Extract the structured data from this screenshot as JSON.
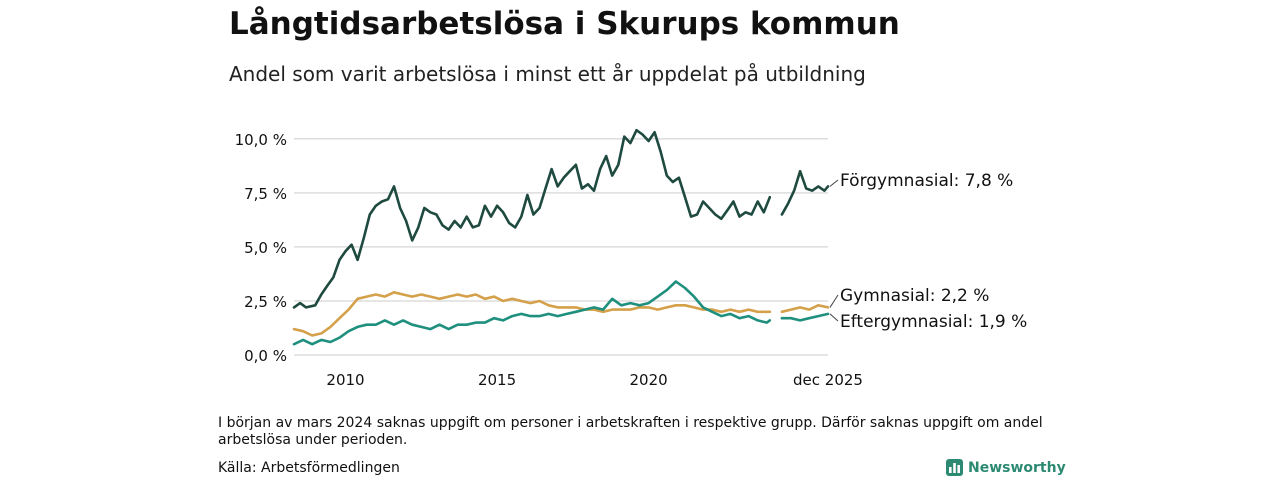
{
  "header": {
    "title": "Långtidsarbetslösa i Skurups kommun",
    "subtitle": "Andel som varit arbetslösa i minst ett år uppdelat på utbildning"
  },
  "footer": {
    "note": "I början av mars 2024 saknas uppgift om personer i arbetskraften i respektive grupp. Därför saknas uppgift om andel arbetslösa under perioden.",
    "source": "Källa: Arbetsförmedlingen",
    "brand": "Newsworthy"
  },
  "colors": {
    "forgymnasial": "#1f4a40",
    "gymnasial": "#d4a04a",
    "eftergymnasial": "#1f8f7e",
    "grid": "#dddddd",
    "brand": "#2c8a73"
  },
  "chart_data": {
    "type": "line",
    "title": "Långtidsarbetslösa i Skurups kommun",
    "subtitle": "Andel som varit arbetslösa i minst ett år uppdelat på utbildning",
    "xlabel": "",
    "ylabel": "",
    "x_range": [
      2008.3,
      2025.92
    ],
    "ylim": [
      0,
      10.5
    ],
    "y_ticks": [
      0,
      2.5,
      5,
      7.5,
      10
    ],
    "y_tick_labels": [
      "0,0 %",
      "2,5 %",
      "5,0 %",
      "7,5 %",
      "10,0 %"
    ],
    "x_ticks": [
      2010,
      2015,
      2020,
      2025.92
    ],
    "x_tick_labels": [
      "2010",
      "2015",
      "2020",
      "dec 2025"
    ],
    "grid": true,
    "gap": [
      2024.0,
      2024.4
    ],
    "series": [
      {
        "name": "Förgymnasial",
        "label": "Förgymnasial: 7,8 %",
        "color": "#1f4a40",
        "x": [
          2008.3,
          2008.5,
          2008.7,
          2009.0,
          2009.2,
          2009.4,
          2009.6,
          2009.8,
          2010.0,
          2010.2,
          2010.4,
          2010.6,
          2010.8,
          2011.0,
          2011.2,
          2011.4,
          2011.6,
          2011.8,
          2012.0,
          2012.2,
          2012.4,
          2012.6,
          2012.8,
          2013.0,
          2013.2,
          2013.4,
          2013.6,
          2013.8,
          2014.0,
          2014.2,
          2014.4,
          2014.6,
          2014.8,
          2015.0,
          2015.2,
          2015.4,
          2015.6,
          2015.8,
          2016.0,
          2016.2,
          2016.4,
          2016.6,
          2016.8,
          2017.0,
          2017.2,
          2017.4,
          2017.6,
          2017.8,
          2018.0,
          2018.2,
          2018.4,
          2018.6,
          2018.8,
          2019.0,
          2019.2,
          2019.4,
          2019.6,
          2019.8,
          2020.0,
          2020.2,
          2020.4,
          2020.6,
          2020.8,
          2021.0,
          2021.2,
          2021.4,
          2021.6,
          2021.8,
          2022.0,
          2022.2,
          2022.4,
          2022.6,
          2022.8,
          2023.0,
          2023.2,
          2023.4,
          2023.6,
          2023.8,
          2024.0,
          2024.4,
          2024.6,
          2024.8,
          2025.0,
          2025.2,
          2025.4,
          2025.6,
          2025.8,
          2025.92
        ],
        "values": [
          2.2,
          2.4,
          2.2,
          2.3,
          2.8,
          3.2,
          3.6,
          4.4,
          4.8,
          5.1,
          4.4,
          5.4,
          6.5,
          6.9,
          7.1,
          7.2,
          7.8,
          6.8,
          6.2,
          5.3,
          5.9,
          6.8,
          6.6,
          6.5,
          6.0,
          5.8,
          6.2,
          5.9,
          6.4,
          5.9,
          6.0,
          6.9,
          6.4,
          6.9,
          6.6,
          6.1,
          5.9,
          6.4,
          7.4,
          6.5,
          6.8,
          7.7,
          8.6,
          7.8,
          8.2,
          8.5,
          8.8,
          7.7,
          7.9,
          7.6,
          8.6,
          9.2,
          8.3,
          8.8,
          10.1,
          9.8,
          10.4,
          10.2,
          9.9,
          10.3,
          9.4,
          8.3,
          8.0,
          8.2,
          7.3,
          6.4,
          6.5,
          7.1,
          6.8,
          6.5,
          6.3,
          6.7,
          7.1,
          6.4,
          6.6,
          6.5,
          7.1,
          6.6,
          7.3,
          6.5,
          7.0,
          7.6,
          8.5,
          7.7,
          7.6,
          7.8,
          7.6,
          7.8
        ]
      },
      {
        "name": "Gymnasial",
        "label": "Gymnasial: 2,2 %",
        "color": "#d4a04a",
        "x": [
          2008.3,
          2008.6,
          2008.9,
          2009.2,
          2009.5,
          2009.8,
          2010.1,
          2010.4,
          2010.7,
          2011.0,
          2011.3,
          2011.6,
          2011.9,
          2012.2,
          2012.5,
          2012.8,
          2013.1,
          2013.4,
          2013.7,
          2014.0,
          2014.3,
          2014.6,
          2014.9,
          2015.2,
          2015.5,
          2015.8,
          2016.1,
          2016.4,
          2016.7,
          2017.0,
          2017.3,
          2017.6,
          2017.9,
          2018.2,
          2018.5,
          2018.8,
          2019.1,
          2019.4,
          2019.7,
          2020.0,
          2020.3,
          2020.6,
          2020.9,
          2021.2,
          2021.5,
          2021.8,
          2022.1,
          2022.4,
          2022.7,
          2023.0,
          2023.3,
          2023.6,
          2023.9,
          2024.0,
          2024.4,
          2024.7,
          2025.0,
          2025.3,
          2025.6,
          2025.92
        ],
        "values": [
          1.2,
          1.1,
          0.9,
          1.0,
          1.3,
          1.7,
          2.1,
          2.6,
          2.7,
          2.8,
          2.7,
          2.9,
          2.8,
          2.7,
          2.8,
          2.7,
          2.6,
          2.7,
          2.8,
          2.7,
          2.8,
          2.6,
          2.7,
          2.5,
          2.6,
          2.5,
          2.4,
          2.5,
          2.3,
          2.2,
          2.2,
          2.2,
          2.1,
          2.1,
          2.0,
          2.1,
          2.1,
          2.1,
          2.2,
          2.2,
          2.1,
          2.2,
          2.3,
          2.3,
          2.2,
          2.1,
          2.1,
          2.0,
          2.1,
          2.0,
          2.1,
          2.0,
          2.0,
          2.0,
          2.0,
          2.1,
          2.2,
          2.1,
          2.3,
          2.2
        ]
      },
      {
        "name": "Eftergymnasial",
        "label": "Eftergymnasial: 1,9 %",
        "color": "#1f8f7e",
        "x": [
          2008.3,
          2008.6,
          2008.9,
          2009.2,
          2009.5,
          2009.8,
          2010.1,
          2010.4,
          2010.7,
          2011.0,
          2011.3,
          2011.6,
          2011.9,
          2012.2,
          2012.5,
          2012.8,
          2013.1,
          2013.4,
          2013.7,
          2014.0,
          2014.3,
          2014.6,
          2014.9,
          2015.2,
          2015.5,
          2015.8,
          2016.1,
          2016.4,
          2016.7,
          2017.0,
          2017.3,
          2017.6,
          2017.9,
          2018.2,
          2018.5,
          2018.8,
          2019.1,
          2019.4,
          2019.7,
          2020.0,
          2020.3,
          2020.6,
          2020.9,
          2021.2,
          2021.5,
          2021.8,
          2022.1,
          2022.4,
          2022.7,
          2023.0,
          2023.3,
          2023.6,
          2023.9,
          2024.0,
          2024.4,
          2024.7,
          2025.0,
          2025.3,
          2025.6,
          2025.92
        ],
        "values": [
          0.5,
          0.7,
          0.5,
          0.7,
          0.6,
          0.8,
          1.1,
          1.3,
          1.4,
          1.4,
          1.6,
          1.4,
          1.6,
          1.4,
          1.3,
          1.2,
          1.4,
          1.2,
          1.4,
          1.4,
          1.5,
          1.5,
          1.7,
          1.6,
          1.8,
          1.9,
          1.8,
          1.8,
          1.9,
          1.8,
          1.9,
          2.0,
          2.1,
          2.2,
          2.1,
          2.6,
          2.3,
          2.4,
          2.3,
          2.4,
          2.7,
          3.0,
          3.4,
          3.1,
          2.7,
          2.2,
          2.0,
          1.8,
          1.9,
          1.7,
          1.8,
          1.6,
          1.5,
          1.6,
          1.7,
          1.7,
          1.6,
          1.7,
          1.8,
          1.9
        ]
      }
    ]
  }
}
